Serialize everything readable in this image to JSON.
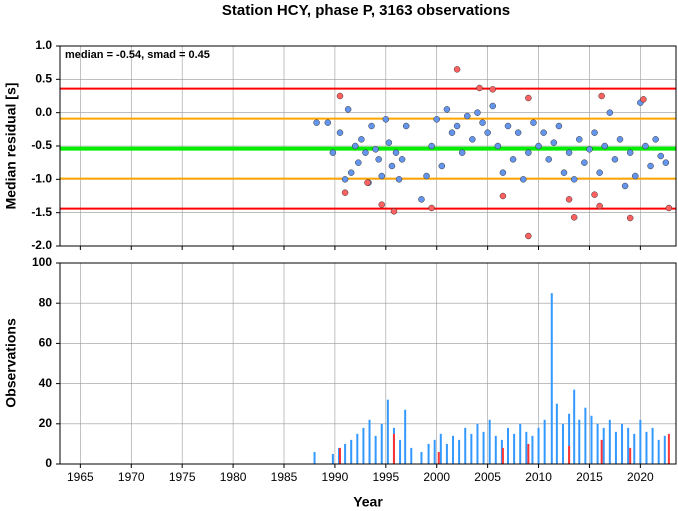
{
  "chart_data": [
    {
      "type": "scatter",
      "title": "Station HCY, phase P, 3163 observations",
      "annotation": "median = -0.54, smad = 0.45",
      "ylabel": "Median residual [s]",
      "xlim": [
        1963,
        2023.5
      ],
      "xticks": [
        1965,
        1970,
        1975,
        1980,
        1985,
        1990,
        1995,
        2000,
        2005,
        2010,
        2015,
        2020
      ],
      "ylim": [
        -2,
        1
      ],
      "yticks": [
        {
          "value": 1,
          "label": "1.0"
        },
        0.5,
        {
          "value": 0,
          "label": "0.0"
        },
        -0.5,
        {
          "value": -1,
          "label": "-1.0"
        },
        -1.5,
        {
          "value": -2,
          "label": "-2.0"
        }
      ],
      "grid": true,
      "hlines": [
        {
          "value": 0.36,
          "color": "#ff0000"
        },
        {
          "value": -0.09,
          "color": "#ffa500"
        },
        {
          "value": -0.54,
          "color": "#00ee00"
        },
        {
          "value": -0.99,
          "color": "#ffa500"
        },
        {
          "value": -1.44,
          "color": "#ff0000"
        }
      ],
      "series": [
        {
          "color": "#6495ed",
          "x": [
            1988.2,
            1989.3,
            1989.8,
            1990.5,
            1991.0,
            1991.3,
            1991.6,
            1992.0,
            1992.3,
            1992.6,
            1993.0,
            1993.3,
            1993.6,
            1994.0,
            1994.3,
            1994.6,
            1995.0,
            1995.3,
            1995.6,
            1996.0,
            1996.3,
            1996.6,
            1997.0,
            1998.5,
            1999.0,
            1999.5,
            2000.0,
            2000.5,
            2001.0,
            2001.5,
            2002.0,
            2002.5,
            2003.0,
            2003.5,
            2004.0,
            2004.5,
            2005.0,
            2005.5,
            2006.0,
            2006.5,
            2007.0,
            2007.5,
            2008.0,
            2008.5,
            2009.0,
            2009.5,
            2010.0,
            2010.5,
            2011.0,
            2011.5,
            2012.0,
            2012.5,
            2013.0,
            2013.5,
            2014.0,
            2014.5,
            2015.0,
            2015.5,
            2016.0,
            2016.5,
            2017.0,
            2017.5,
            2018.0,
            2018.5,
            2019.0,
            2019.5,
            2020.0,
            2020.5,
            2021.0,
            2021.5,
            2022.0,
            2022.5
          ],
          "values": [
            -0.15,
            -0.15,
            -0.6,
            -0.3,
            -1.0,
            0.05,
            -0.9,
            -0.5,
            -0.75,
            -0.4,
            -0.6,
            -1.05,
            -0.2,
            -0.55,
            -0.7,
            -0.95,
            -0.1,
            -0.45,
            -0.8,
            -0.6,
            -1.0,
            -0.7,
            -0.2,
            -1.3,
            -0.95,
            -0.5,
            -0.1,
            -0.8,
            0.05,
            -0.3,
            -0.2,
            -0.6,
            -0.05,
            -0.4,
            0.0,
            -0.15,
            -0.3,
            0.1,
            -0.5,
            -0.9,
            -0.2,
            -0.7,
            -0.3,
            -1.0,
            -0.6,
            -0.15,
            -0.5,
            -0.3,
            -0.7,
            -0.45,
            -0.2,
            -0.9,
            -0.6,
            -1.0,
            -0.4,
            -0.75,
            -0.55,
            -0.3,
            -0.9,
            -0.5,
            0.0,
            -0.7,
            -0.4,
            -1.1,
            -0.6,
            -0.95,
            0.15,
            -0.5,
            -0.8,
            -0.4,
            -0.65,
            -0.75
          ]
        },
        {
          "color": "#ff6060",
          "x": [
            1990.5,
            1991.0,
            1993.2,
            1994.6,
            1995.8,
            1999.5,
            2002.0,
            2004.2,
            2005.5,
            2006.5,
            2009.0,
            2009.0,
            2013.0,
            2013.5,
            2015.5,
            2016.0,
            2016.2,
            2019.0,
            2020.3,
            2022.8
          ],
          "values": [
            0.25,
            -1.2,
            -1.05,
            -1.38,
            -1.48,
            -1.43,
            0.65,
            0.37,
            0.35,
            -1.25,
            0.22,
            -1.85,
            -1.3,
            -1.57,
            -1.23,
            -1.4,
            0.25,
            -1.58,
            0.2,
            -1.43
          ]
        }
      ]
    },
    {
      "type": "bar",
      "ylabel": "Observations",
      "xlabel": "Year",
      "xlim": [
        1963,
        2023.5
      ],
      "xticks": [
        1965,
        1970,
        1975,
        1980,
        1985,
        1990,
        1995,
        2000,
        2005,
        2010,
        2015,
        2020
      ],
      "ylim": [
        0,
        100
      ],
      "yticks": [
        0,
        20,
        40,
        60,
        80,
        100
      ],
      "grid": true,
      "series": [
        {
          "color": "#3399ff",
          "x": [
            1988.0,
            1989.8,
            1990.4,
            1991.0,
            1991.6,
            1992.2,
            1992.8,
            1993.4,
            1994.0,
            1994.6,
            1995.2,
            1995.8,
            1996.4,
            1996.9,
            1997.5,
            1998.5,
            1999.2,
            1999.8,
            2000.4,
            2001.0,
            2001.6,
            2002.2,
            2002.8,
            2003.4,
            2004.0,
            2004.6,
            2005.2,
            2005.8,
            2006.4,
            2007.0,
            2007.6,
            2008.2,
            2008.8,
            2009.4,
            2010.0,
            2010.6,
            2011.3,
            2011.8,
            2012.4,
            2013.0,
            2013.5,
            2014.0,
            2014.6,
            2015.2,
            2015.8,
            2016.4,
            2017.0,
            2017.6,
            2018.2,
            2018.8,
            2019.4,
            2020.0,
            2020.6,
            2021.2,
            2021.8,
            2022.4
          ],
          "values": [
            6,
            5,
            8,
            10,
            12,
            15,
            18,
            22,
            14,
            20,
            32,
            18,
            12,
            27,
            8,
            6,
            10,
            12,
            15,
            10,
            14,
            12,
            18,
            15,
            20,
            16,
            22,
            14,
            12,
            18,
            15,
            20,
            16,
            14,
            18,
            22,
            85,
            30,
            20,
            25,
            37,
            22,
            28,
            24,
            20,
            18,
            22,
            16,
            20,
            18,
            15,
            22,
            16,
            18,
            12,
            14
          ]
        },
        {
          "color": "#ff3333",
          "x": [
            1990.5,
            1995.8,
            2000.2,
            2006.5,
            2009.0,
            2013.0,
            2016.2,
            2019.0,
            2022.8
          ],
          "values": [
            8,
            15,
            6,
            8,
            10,
            9,
            12,
            8,
            15
          ]
        }
      ]
    }
  ]
}
